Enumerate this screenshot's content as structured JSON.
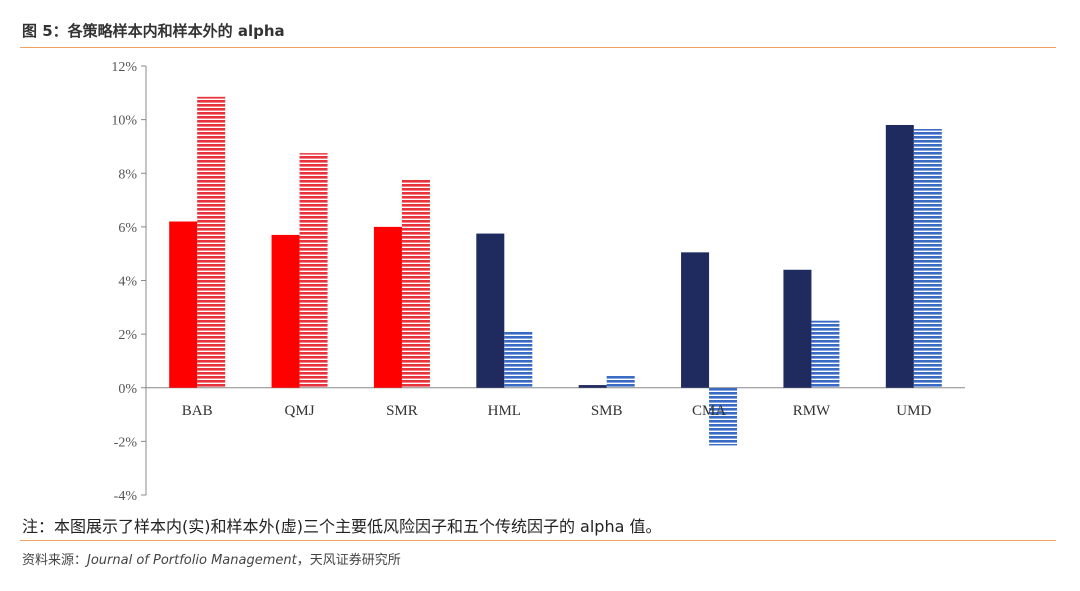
{
  "figure": {
    "title": "图 5：各策略样本内和样本外的 alpha"
  },
  "chart_data": {
    "type": "bar",
    "categories": [
      "BAB",
      "QMJ",
      "SMR",
      "HML",
      "SMB",
      "CMA",
      "RMW",
      "UMD"
    ],
    "series": [
      {
        "name": "样本内(实)",
        "values": [
          6.2,
          5.7,
          6.0,
          5.75,
          0.1,
          5.05,
          4.4,
          9.8
        ],
        "colors": [
          "#ff0000",
          "#ff0000",
          "#ff0000",
          "#1f2a5f",
          "#1f2a5f",
          "#1f2a5f",
          "#1f2a5f",
          "#1f2a5f"
        ]
      },
      {
        "name": "样本外(虚)",
        "values": [
          10.85,
          8.75,
          7.75,
          2.1,
          0.45,
          -2.15,
          2.5,
          9.65
        ],
        "colors": [
          "#e8323c",
          "#e8323c",
          "#e8323c",
          "#3a6bc4",
          "#3a6bc4",
          "#3a6bc4",
          "#3a6bc4",
          "#3a6bc4"
        ]
      }
    ],
    "ylim": [
      -4,
      12
    ],
    "yticks": [
      -4,
      -2,
      0,
      2,
      4,
      6,
      8,
      10,
      12
    ],
    "ytick_labels": [
      "-4%",
      "-2%",
      "0%",
      "2%",
      "4%",
      "6%",
      "8%",
      "10%",
      "12%"
    ],
    "xlabel": "",
    "ylabel": ""
  },
  "note": "注：本图展示了样本内(实)和样本外(虚)三个主要低风险因子和五个传统因子的 alpha 值。",
  "source": {
    "prefix": "资料来源：",
    "journal": "Journal of Portfolio Management",
    "suffix": "，天风证券研究所"
  }
}
